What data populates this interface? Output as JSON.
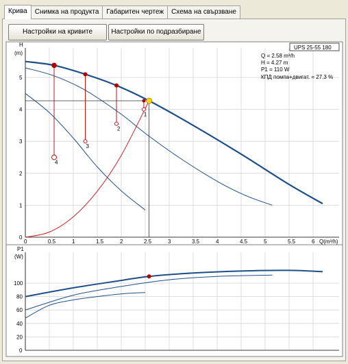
{
  "tabs": [
    "Крива",
    "Снимка на продукта",
    "Габаритен чертеж",
    "Схема на свързване"
  ],
  "buttons": {
    "curves_settings": "Настройки на кривите",
    "default_settings": "Настройки по подразбиране"
  },
  "head_chart": {
    "model": "UPS 25-55 180",
    "ylabel": "H",
    "yunit": "(m)",
    "xlabel": "Q(m³/h)",
    "yticks": [
      "0",
      "1",
      "2",
      "3",
      "4",
      "5"
    ],
    "xticks": [
      "0",
      "0.5",
      "1",
      "1.5",
      "2",
      "2.5",
      "3",
      "3.5",
      "4",
      "4.5",
      "5",
      "5.5",
      "6"
    ],
    "point_labels": [
      "1",
      "2",
      "3",
      "4"
    ],
    "info_lines": [
      "Q = 2.58 m³/h",
      "H = 4.27 m",
      "P1 = 110 W",
      "КПД помпа+двигат. = 27.3 %"
    ]
  },
  "power_chart": {
    "ylabel": "P1",
    "yunit": "(W)",
    "yticks": [
      "0",
      "20",
      "40",
      "60",
      "80",
      "100"
    ]
  },
  "chart_data": [
    {
      "type": "line",
      "xlabel": "Q(m³/h)",
      "ylabel": "H (m)",
      "xlim": [
        0,
        6.2
      ],
      "ylim": [
        0,
        5.7
      ],
      "series": [
        {
          "name": "speed-3",
          "x": [
            0,
            0.6,
            1.25,
            1.9,
            2.58,
            3.5,
            4.5,
            5.5,
            6.2
          ],
          "y": [
            5.5,
            5.38,
            5.1,
            4.75,
            4.27,
            3.5,
            2.6,
            1.65,
            1.05
          ]
        },
        {
          "name": "speed-2",
          "x": [
            0,
            0.6,
            1.25,
            2.0,
            2.5,
            3.2,
            4.0,
            4.6,
            5.15
          ],
          "y": [
            5.3,
            5.05,
            4.6,
            3.85,
            3.25,
            2.5,
            1.75,
            1.3,
            1.0
          ]
        },
        {
          "name": "speed-1",
          "x": [
            0,
            0.5,
            1.0,
            1.5,
            2.0,
            2.5
          ],
          "y": [
            4.5,
            3.9,
            3.1,
            2.2,
            1.45,
            0.85
          ]
        },
        {
          "name": "system-curve",
          "x": [
            0,
            0.5,
            1.0,
            1.5,
            2.0,
            2.58
          ],
          "y": [
            0,
            0.16,
            0.64,
            1.44,
            2.56,
            4.27
          ]
        }
      ],
      "points": [
        {
          "label": "1",
          "x": 2.47,
          "y": 4.27,
          "y_bottom": 4.0
        },
        {
          "label": "2",
          "x": 1.9,
          "y": 4.75,
          "y_bottom": 3.55
        },
        {
          "label": "3",
          "x": 1.25,
          "y": 5.1,
          "y_bottom": 3.0
        },
        {
          "label": "4",
          "x": 0.6,
          "y": 5.38,
          "y_bottom": 2.5
        }
      ],
      "operating_point": {
        "x": 2.58,
        "y": 4.27
      }
    },
    {
      "type": "line",
      "xlabel": "Q(m³/h)",
      "ylabel": "P1 (W)",
      "xlim": [
        0,
        6.2
      ],
      "ylim": [
        0,
        120
      ],
      "series": [
        {
          "name": "speed-3",
          "x": [
            0,
            1,
            2,
            2.58,
            3.5,
            4.5,
            5.5,
            6.2
          ],
          "y": [
            80,
            93,
            104,
            110,
            115,
            118,
            119,
            117
          ]
        },
        {
          "name": "speed-2",
          "x": [
            0,
            1,
            2,
            3,
            4,
            5.15
          ],
          "y": [
            60,
            82,
            95,
            105,
            110,
            112
          ]
        },
        {
          "name": "speed-1",
          "x": [
            0,
            0.5,
            1,
            1.5,
            2,
            2.5
          ],
          "y": [
            48,
            67,
            75,
            80,
            84,
            86
          ]
        }
      ],
      "operating_point": {
        "x": 2.58,
        "y": 110
      }
    }
  ],
  "colors": {
    "pump_curve": "#1c4f8a",
    "system_curve": "#d02020",
    "point": "#b00000",
    "operating_point": "#ffd700"
  }
}
